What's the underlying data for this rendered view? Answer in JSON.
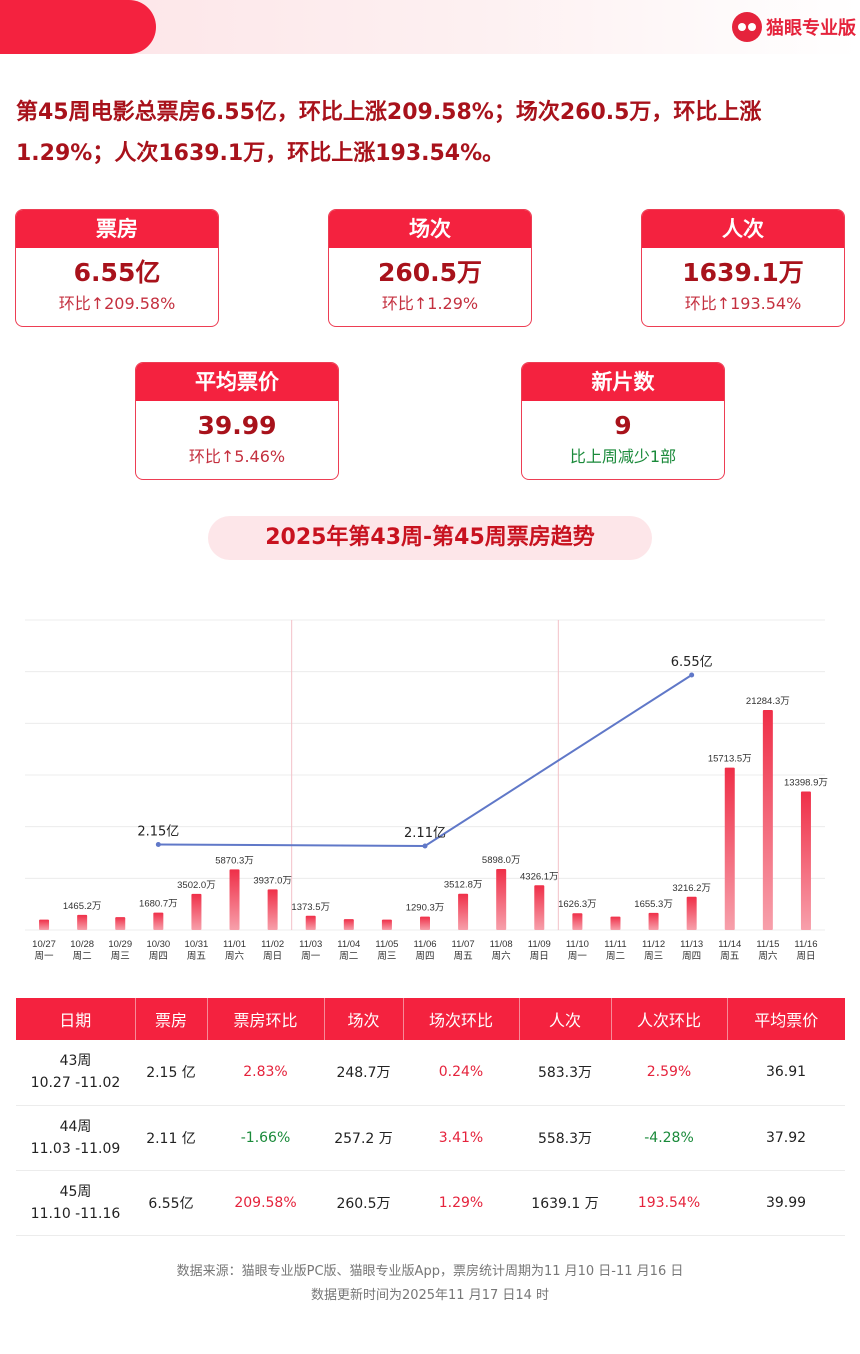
{
  "brand": {
    "name": "猫眼专业版",
    "logo_icon": "maoyan-cat-logo-icon"
  },
  "headline": "第45周电影总票房6.55亿，环比上涨209.58%；场次260.5万，环比上涨1.29%；人次1639.1万，环比上涨193.54%。",
  "cards": {
    "box_office": {
      "title": "票房",
      "value": "6.55亿",
      "sub": "环比↑209.58%"
    },
    "screenings": {
      "title": "场次",
      "value": "260.5万",
      "sub": "环比↑1.29%"
    },
    "admissions": {
      "title": "人次",
      "value": "1639.1万",
      "sub": "环比↑193.54%"
    },
    "avg_price": {
      "title": "平均票价",
      "value": "39.99",
      "sub": "环比↑5.46%"
    },
    "new_films": {
      "title": "新片数",
      "value": "9",
      "sub": "比上周减少1部"
    }
  },
  "trend_title": "2025年第43周-第45周票房趋势",
  "chart_data": {
    "type": "bar",
    "categories": [
      "10/27",
      "10/28",
      "10/29",
      "10/30",
      "10/31",
      "11/01",
      "11/02",
      "11/03",
      "11/04",
      "11/05",
      "11/06",
      "11/07",
      "11/08",
      "11/09",
      "11/10",
      "11/11",
      "11/12",
      "11/13",
      "11/14",
      "11/15",
      "11/16"
    ],
    "weekdays": [
      "周一",
      "周二",
      "周三",
      "周四",
      "周五",
      "周六",
      "周日",
      "周一",
      "周二",
      "周三",
      "周四",
      "周五",
      "周六",
      "周日",
      "周一",
      "周二",
      "周三",
      "周四",
      "周五",
      "周六",
      "周日"
    ],
    "values": [
      1000,
      1465.2,
      1250,
      1680.7,
      3502.0,
      5870.3,
      3937.0,
      1373.5,
      1050,
      1000,
      1290.3,
      3512.8,
      5898.0,
      4326.1,
      1626.3,
      1300,
      1655.3,
      3216.2,
      15713.5,
      21284.3,
      13398.9
    ],
    "labels": [
      "",
      "1465.2万",
      "",
      "1680.7万",
      "3502.0万",
      "5870.3万",
      "3937.0万",
      "1373.5万",
      "",
      "",
      "1290.3万",
      "3512.8万",
      "5898.0万",
      "4326.1万",
      "1626.3万",
      "",
      "1655.3万",
      "3216.2万",
      "15713.5万",
      "21284.3万",
      "13398.9万"
    ],
    "weekly_line": {
      "x_index": [
        3,
        10,
        17
      ],
      "values": [
        2.15,
        2.11,
        6.55
      ],
      "labels": [
        "2.15亿",
        "2.11亿",
        "6.55亿"
      ]
    },
    "week_separators_after_index": [
      6,
      13
    ],
    "ylim": [
      0,
      30000
    ],
    "grid": true,
    "colors": {
      "bar": "#ef3b52",
      "bar_top": "#ef2f48",
      "line": "#6078c8"
    }
  },
  "table": {
    "headers": [
      "日期",
      "票房",
      "票房环比",
      "场次",
      "场次环比",
      "人次",
      "人次环比",
      "平均票价"
    ],
    "rows": [
      {
        "week": "43周",
        "range": "10.27 -11.02",
        "box": "2.15 亿",
        "box_chg": "2.83%",
        "scr": "248.7万",
        "scr_chg": "0.24%",
        "adm": "583.3万",
        "adm_chg": "2.59%",
        "price": "36.91"
      },
      {
        "week": "44周",
        "range": "11.03 -11.09",
        "box": "2.11 亿",
        "box_chg": "-1.66%",
        "scr": "257.2 万",
        "scr_chg": "3.41%",
        "adm": "558.3万",
        "adm_chg": "-4.28%",
        "price": "37.92"
      },
      {
        "week": "45周",
        "range": "11.10  -11.16",
        "box": "6.55亿",
        "box_chg": "209.58%",
        "scr": "260.5万",
        "scr_chg": "1.29%",
        "adm": "1639.1 万",
        "adm_chg": "193.54%",
        "price": "39.99"
      }
    ]
  },
  "footer": {
    "source": "数据来源：猫眼专业版PC版、猫眼专业版App，票房统计周期为11 月10 日-11 月16 日",
    "update": "数据更新时间为2025年11 月17 日14 时"
  },
  "colors": {
    "accent": "#f4223f",
    "dark_red": "#a8121b",
    "green": "#1a8a3a"
  }
}
